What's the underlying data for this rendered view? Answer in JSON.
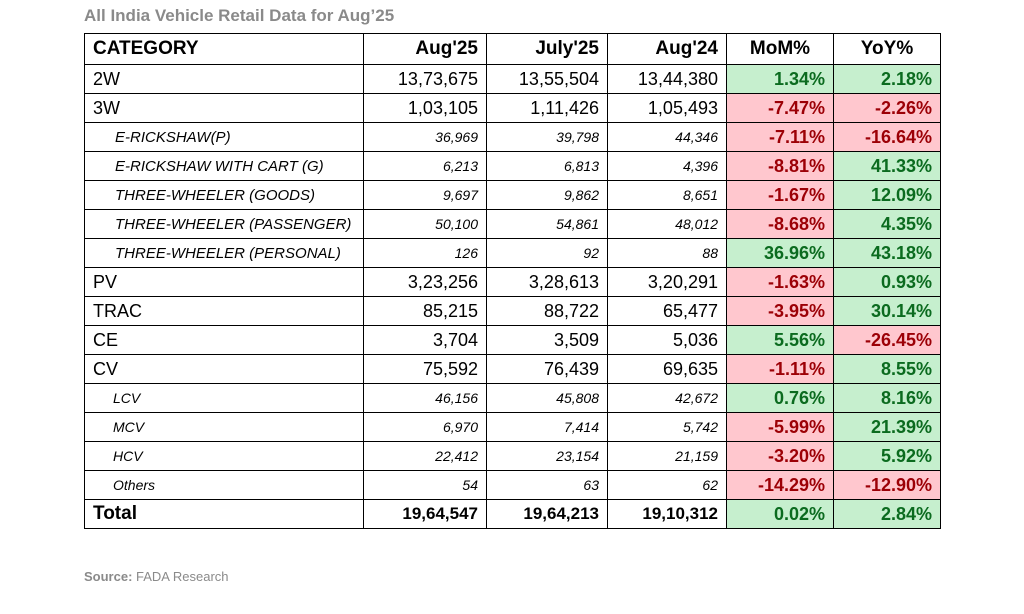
{
  "title": "All India Vehicle Retail  Data for Aug’25",
  "source": {
    "label": "Source:",
    "text": " FADA Research"
  },
  "colors": {
    "positive_bg": "#c6efce",
    "positive_text": "#0b6b1f",
    "negative_bg": "#ffc7ce",
    "negative_text": "#9c0006"
  },
  "table": {
    "headers": {
      "category": "CATEGORY",
      "aug25": "Aug'25",
      "july25": "July'25",
      "aug24": "Aug'24",
      "mom": "MoM%",
      "yoy": "YoY%"
    },
    "rows": [
      {
        "category": "2W",
        "aug25": "13,73,675",
        "july25": "13,55,504",
        "aug24": "13,44,380",
        "mom": "1.34%",
        "yoy": "2.18%"
      },
      {
        "category": "3W",
        "aug25": "1,03,105",
        "july25": "1,11,426",
        "aug24": "1,05,493",
        "mom": "-7.47%",
        "yoy": "-2.26%"
      },
      {
        "category": "E-RICKSHAW(P)",
        "aug25": "36,969",
        "july25": "39,798",
        "aug24": "44,346",
        "mom": "-7.11%",
        "yoy": "-16.64%"
      },
      {
        "category": "E-RICKSHAW WITH CART (G)",
        "aug25": "6,213",
        "july25": "6,813",
        "aug24": "4,396",
        "mom": "-8.81%",
        "yoy": "41.33%"
      },
      {
        "category": "THREE-WHEELER (GOODS)",
        "aug25": "9,697",
        "july25": "9,862",
        "aug24": "8,651",
        "mom": "-1.67%",
        "yoy": "12.09%"
      },
      {
        "category": "THREE-WHEELER (PASSENGER)",
        "aug25": "50,100",
        "july25": "54,861",
        "aug24": "48,012",
        "mom": "-8.68%",
        "yoy": "4.35%"
      },
      {
        "category": "THREE-WHEELER (PERSONAL)",
        "aug25": "126",
        "july25": "92",
        "aug24": "88",
        "mom": "36.96%",
        "yoy": "43.18%"
      },
      {
        "category": "PV",
        "aug25": "3,23,256",
        "july25": "3,28,613",
        "aug24": "3,20,291",
        "mom": "-1.63%",
        "yoy": "0.93%"
      },
      {
        "category": "TRAC",
        "aug25": "85,215",
        "july25": "88,722",
        "aug24": "65,477",
        "mom": "-3.95%",
        "yoy": "30.14%"
      },
      {
        "category": "CE",
        "aug25": "3,704",
        "july25": "3,509",
        "aug24": "5,036",
        "mom": "5.56%",
        "yoy": "-26.45%"
      },
      {
        "category": "CV",
        "aug25": "75,592",
        "july25": "76,439",
        "aug24": "69,635",
        "mom": "-1.11%",
        "yoy": "8.55%"
      },
      {
        "category": "LCV",
        "aug25": "46,156",
        "july25": "45,808",
        "aug24": "42,672",
        "mom": "0.76%",
        "yoy": "8.16%"
      },
      {
        "category": "MCV",
        "aug25": "6,970",
        "july25": "7,414",
        "aug24": "5,742",
        "mom": "-5.99%",
        "yoy": "21.39%"
      },
      {
        "category": "HCV",
        "aug25": "22,412",
        "july25": "23,154",
        "aug24": "21,159",
        "mom": "-3.20%",
        "yoy": "5.92%"
      },
      {
        "category": "Others",
        "aug25": "54",
        "july25": "63",
        "aug24": "62",
        "mom": "-14.29%",
        "yoy": "-12.90%"
      },
      {
        "category": "Total",
        "aug25": "19,64,547",
        "july25": "19,64,213",
        "aug24": "19,10,312",
        "mom": "0.02%",
        "yoy": "2.84%"
      }
    ]
  }
}
